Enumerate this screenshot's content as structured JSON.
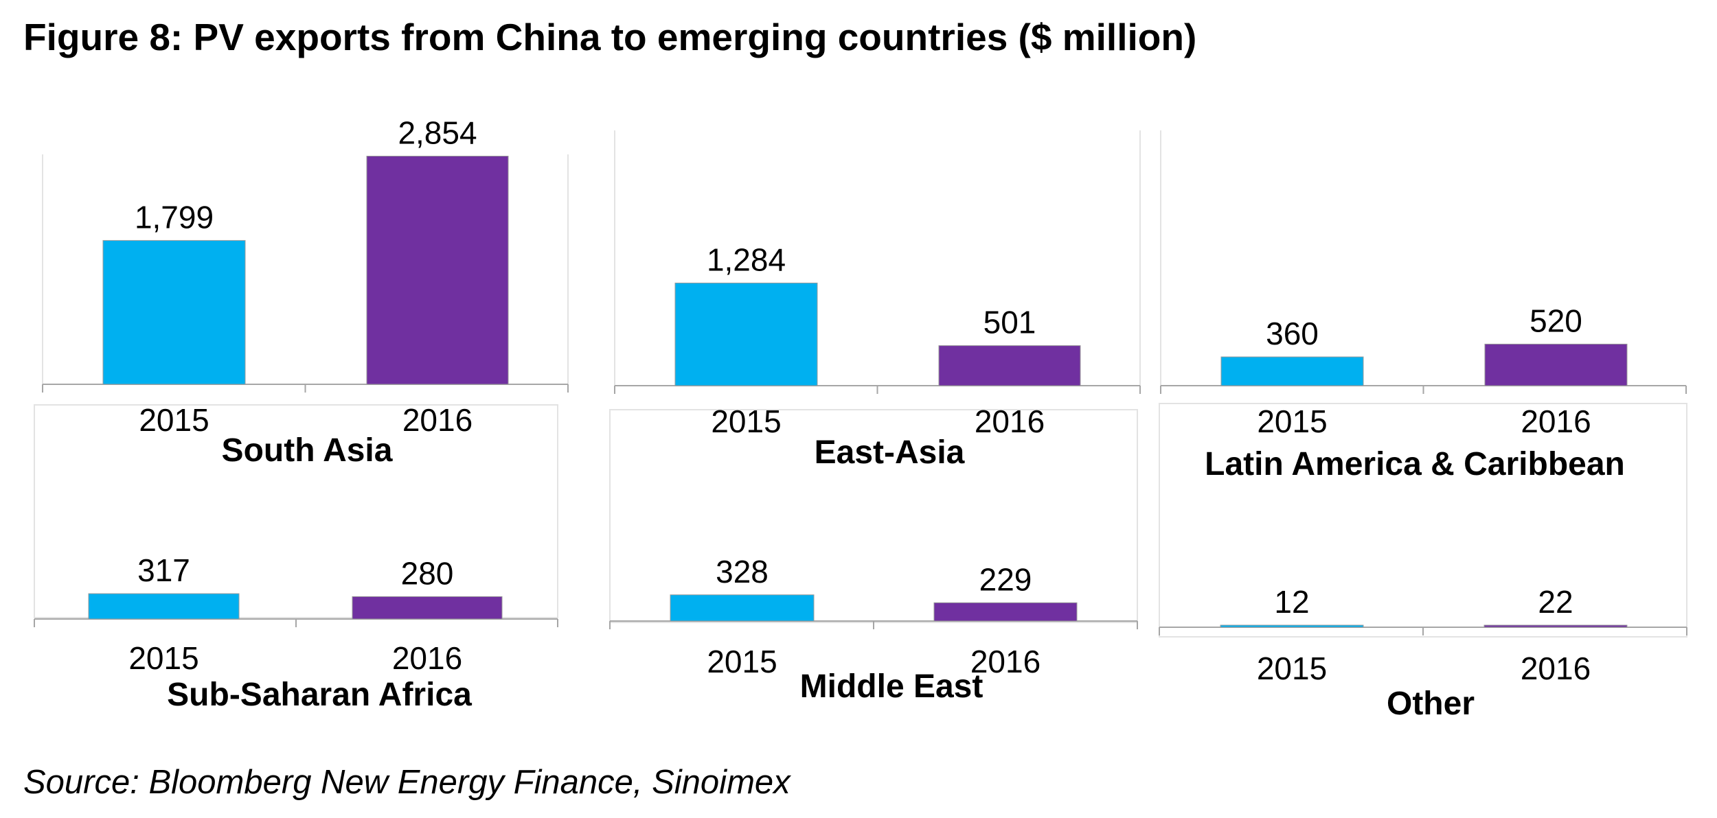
{
  "title": "Figure 8: PV exports from China to emerging countries ($ million)",
  "source": "Source: Bloomberg New Energy Finance, Sinoimex",
  "colors": {
    "2015": "#00B0F0",
    "2016": "#7030A0"
  },
  "chart_data": [
    {
      "type": "bar",
      "title": "South Asia",
      "categories": [
        "2015",
        "2016"
      ],
      "values": [
        1799,
        2854
      ],
      "value_labels": [
        "1,799",
        "2,854"
      ]
    },
    {
      "type": "bar",
      "title": "East-Asia",
      "categories": [
        "2015",
        "2016"
      ],
      "values": [
        1284,
        501
      ],
      "value_labels": [
        "1,284",
        "501"
      ]
    },
    {
      "type": "bar",
      "title": "Latin America & Caribbean",
      "categories": [
        "2015",
        "2016"
      ],
      "values": [
        360,
        520
      ],
      "value_labels": [
        "360",
        "520"
      ]
    },
    {
      "type": "bar",
      "title": "Sub-Saharan Africa",
      "categories": [
        "2015",
        "2016"
      ],
      "values": [
        317,
        280
      ],
      "value_labels": [
        "317",
        "280"
      ]
    },
    {
      "type": "bar",
      "title": "Middle East",
      "categories": [
        "2015",
        "2016"
      ],
      "values": [
        328,
        229
      ],
      "value_labels": [
        "328",
        "229"
      ]
    },
    {
      "type": "bar",
      "title": "Other",
      "categories": [
        "2015",
        "2016"
      ],
      "values": [
        12,
        22
      ],
      "value_labels": [
        "12",
        "22"
      ]
    }
  ]
}
